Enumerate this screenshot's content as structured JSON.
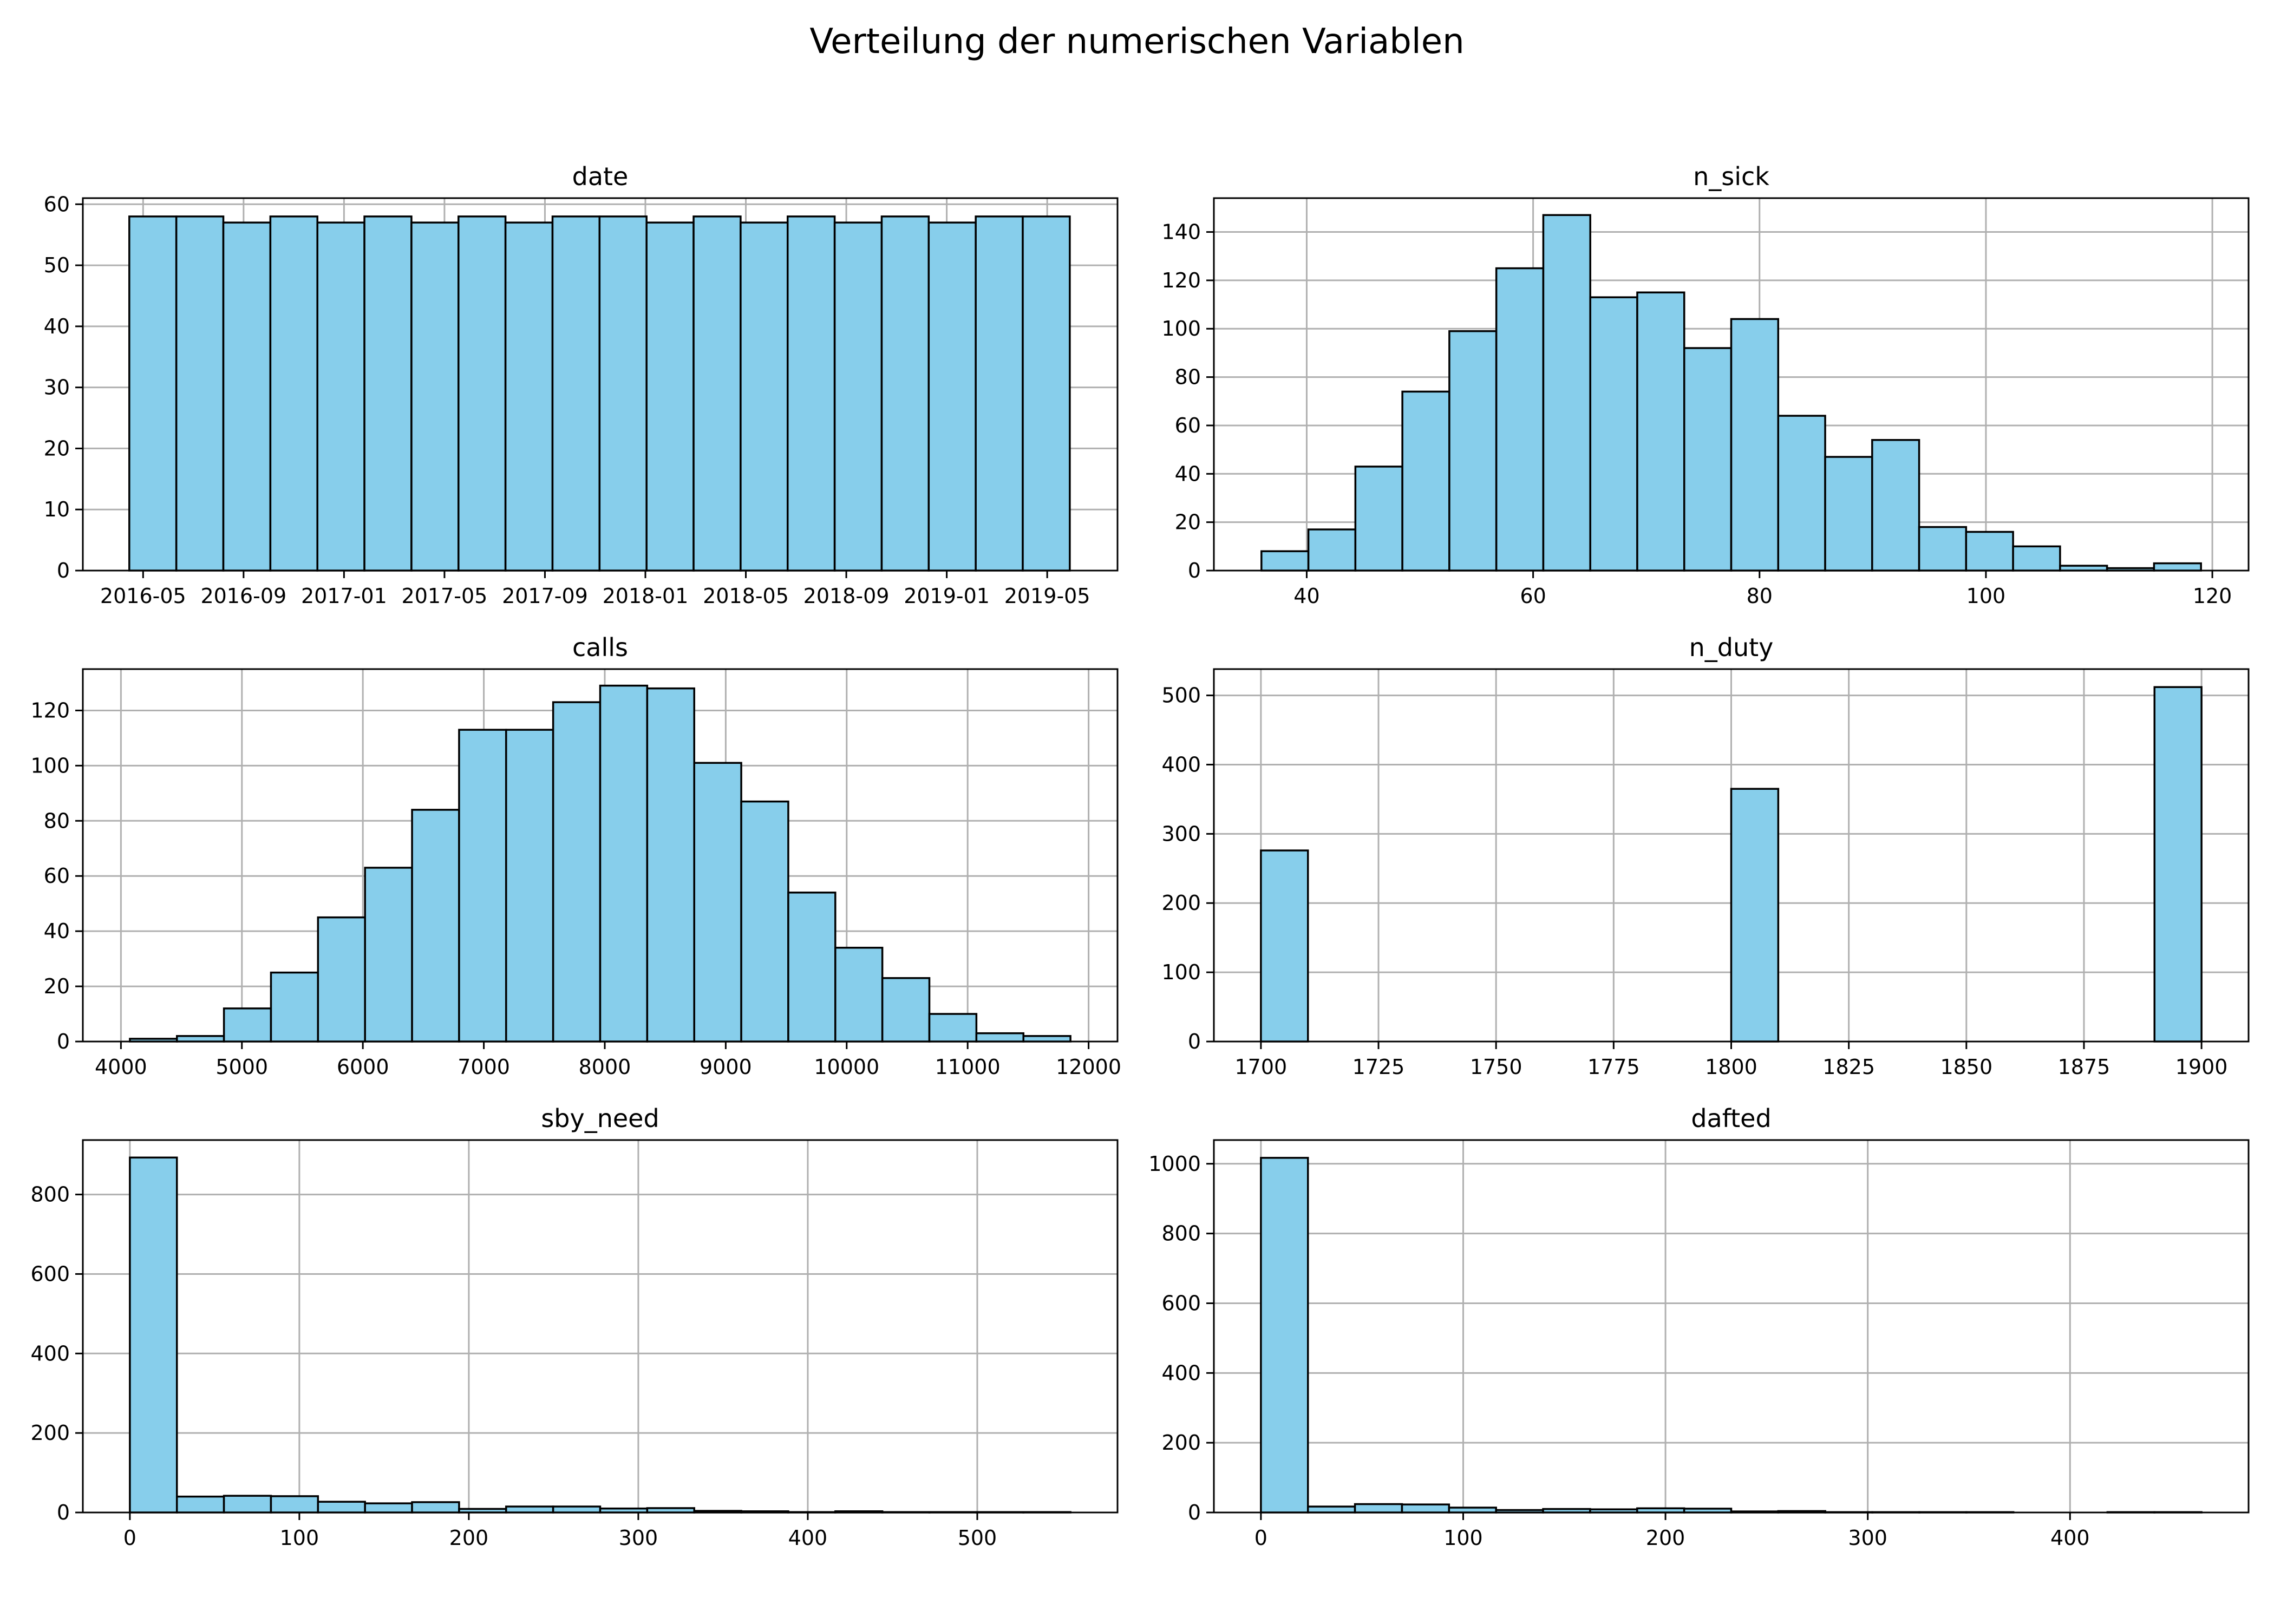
{
  "figure": {
    "title": "Verteilung der numerischen Variablen"
  },
  "colors": {
    "bar_fill": "#87CEEB",
    "bar_edge": "#000000",
    "grid": "#b0b0b0"
  },
  "chart_data": [
    {
      "type": "bar",
      "title": "date",
      "xlabel": "",
      "ylabel": "",
      "x_tick_labels": [
        "2016-05",
        "2016-09",
        "2017-01",
        "2017-05",
        "2017-09",
        "2018-01",
        "2018-05",
        "2018-09",
        "2019-01",
        "2019-05"
      ],
      "x_tick_months": [
        0,
        4,
        8,
        12,
        16,
        20,
        24,
        28,
        32,
        36
      ],
      "bin_range_months": [
        -0.55,
        36.9
      ],
      "values": [
        58,
        58,
        57,
        58,
        57,
        58,
        57,
        58,
        57,
        58,
        58,
        57,
        58,
        57,
        58,
        57,
        58,
        57,
        58,
        58
      ],
      "xlim_months": [
        -2.4,
        38.8
      ],
      "ylim": [
        0,
        61
      ],
      "y_ticks": [
        0,
        10,
        20,
        30,
        40,
        50,
        60
      ],
      "grid": true
    },
    {
      "type": "bar",
      "title": "n_sick",
      "xlabel": "",
      "ylabel": "",
      "bin_range": [
        36,
        119
      ],
      "values": [
        8,
        17,
        43,
        74,
        99,
        125,
        147,
        113,
        115,
        92,
        104,
        64,
        47,
        54,
        18,
        16,
        10,
        2,
        1,
        3
      ],
      "xlim": [
        31.8,
        123.2
      ],
      "ylim": [
        0,
        154
      ],
      "x_ticks": [
        40,
        60,
        80,
        100,
        120
      ],
      "y_ticks": [
        0,
        20,
        40,
        60,
        80,
        100,
        120,
        140
      ],
      "grid": true
    },
    {
      "type": "bar",
      "title": "calls",
      "xlabel": "",
      "ylabel": "",
      "bin_range": [
        4074,
        11850
      ],
      "values": [
        1,
        2,
        12,
        25,
        45,
        63,
        84,
        113,
        113,
        123,
        129,
        128,
        101,
        87,
        54,
        34,
        23,
        10,
        3,
        2
      ],
      "xlim": [
        3685,
        12239
      ],
      "ylim": [
        0,
        135
      ],
      "x_ticks": [
        4000,
        5000,
        6000,
        7000,
        8000,
        9000,
        10000,
        11000,
        12000
      ],
      "y_ticks": [
        0,
        20,
        40,
        60,
        80,
        100,
        120
      ],
      "grid": true
    },
    {
      "type": "bar",
      "title": "n_duty",
      "xlabel": "",
      "ylabel": "",
      "bin_range": [
        1700,
        1900
      ],
      "values": [
        276,
        0,
        0,
        0,
        0,
        0,
        0,
        0,
        0,
        0,
        365,
        0,
        0,
        0,
        0,
        0,
        0,
        0,
        0,
        512
      ],
      "xlim": [
        1690,
        1910
      ],
      "ylim": [
        0,
        538
      ],
      "x_ticks": [
        1700,
        1725,
        1750,
        1775,
        1800,
        1825,
        1850,
        1875,
        1900
      ],
      "y_ticks": [
        0,
        100,
        200,
        300,
        400,
        500
      ],
      "grid": true
    },
    {
      "type": "bar",
      "title": "sby_need",
      "xlabel": "",
      "ylabel": "",
      "bin_range": [
        0,
        555
      ],
      "values": [
        893,
        40,
        42,
        41,
        27,
        23,
        26,
        9,
        15,
        15,
        10,
        11,
        4,
        3,
        1,
        3,
        1,
        1,
        1,
        1
      ],
      "xlim": [
        -27.75,
        582.75
      ],
      "ylim": [
        0,
        937
      ],
      "x_ticks": [
        0,
        100,
        200,
        300,
        400,
        500
      ],
      "y_ticks": [
        0,
        200,
        400,
        600,
        800
      ],
      "grid": true
    },
    {
      "type": "bar",
      "title": "dafted",
      "xlabel": "",
      "ylabel": "",
      "bin_range": [
        0,
        465
      ],
      "values": [
        1017,
        17,
        24,
        23,
        14,
        7,
        10,
        9,
        12,
        11,
        3,
        4,
        1,
        1,
        1,
        1,
        0,
        0,
        1,
        1
      ],
      "xlim": [
        -23.25,
        488.25
      ],
      "ylim": [
        0,
        1068
      ],
      "x_ticks": [
        0,
        100,
        200,
        300,
        400
      ],
      "y_ticks": [
        0,
        200,
        400,
        600,
        800,
        1000
      ],
      "grid": true
    }
  ]
}
